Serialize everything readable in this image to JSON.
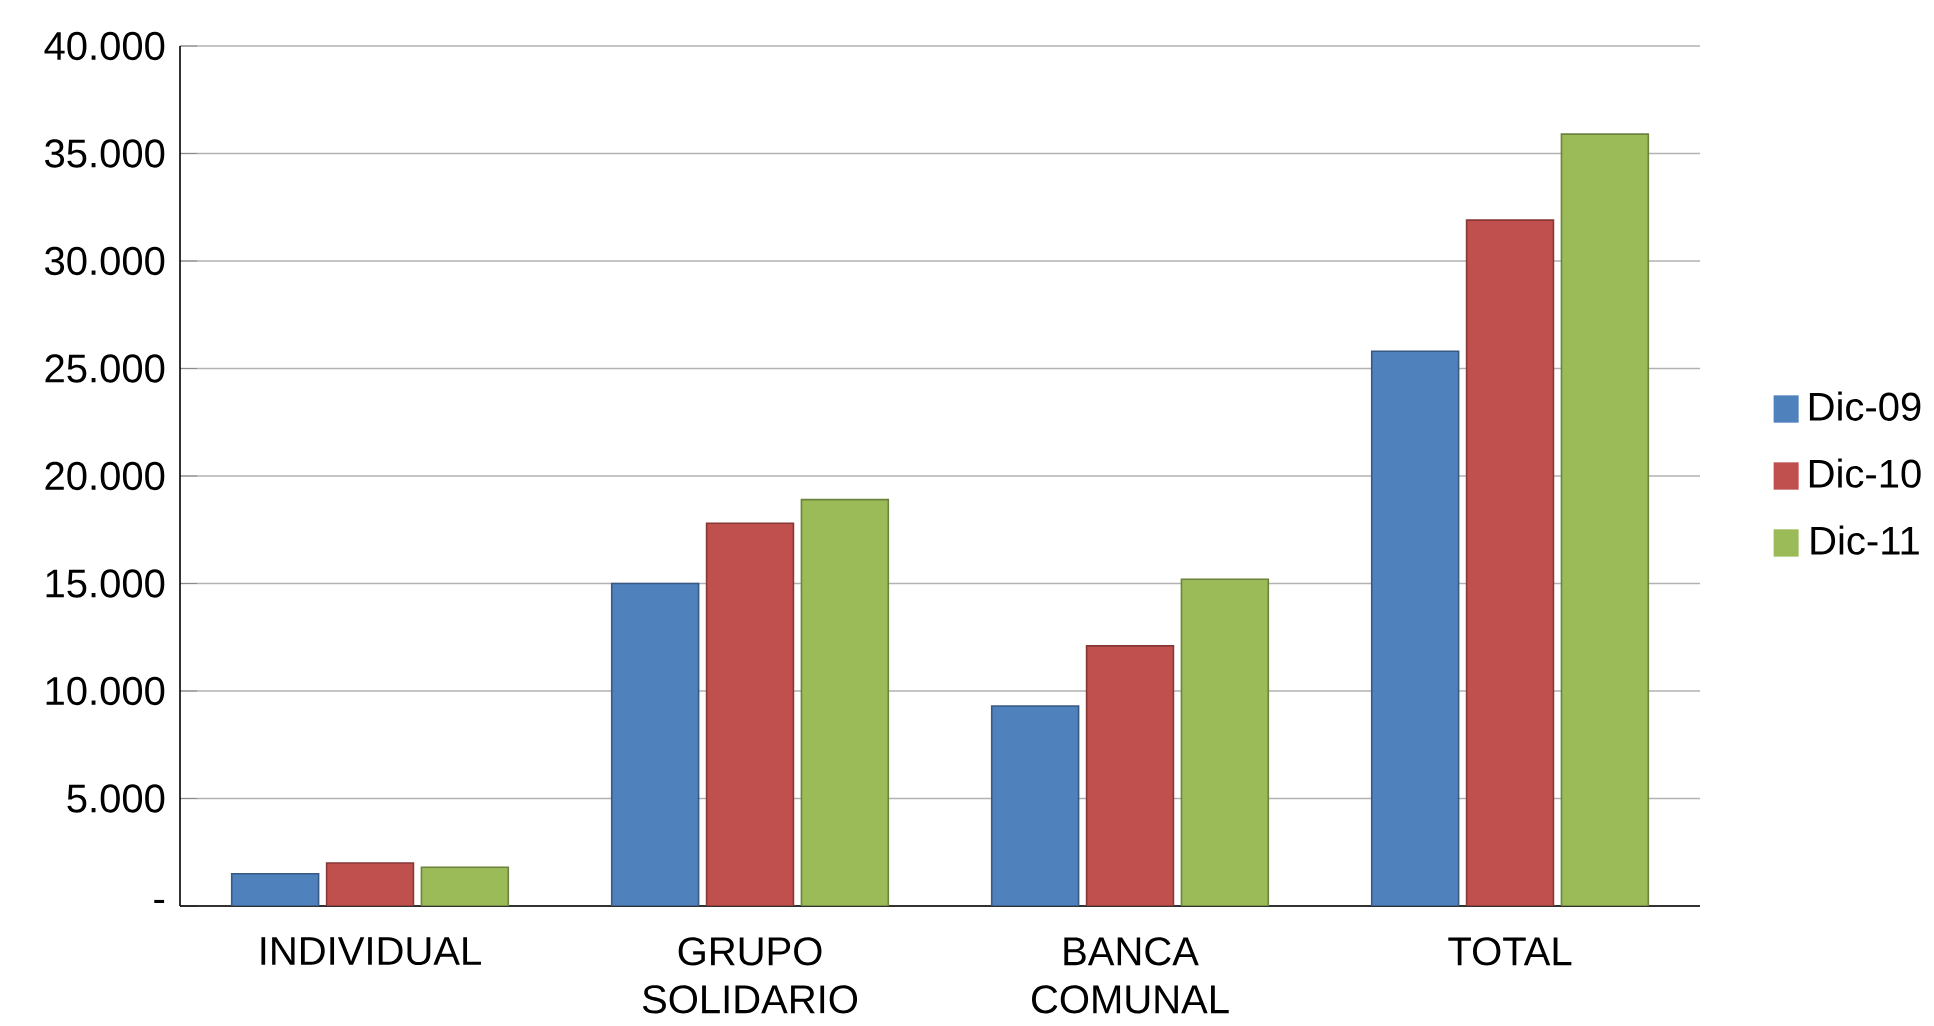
{
  "chart_data": {
    "type": "bar",
    "categories": [
      "INDIVIDUAL",
      "GRUPO SOLIDARIO",
      "BANCA COMUNAL",
      "TOTAL"
    ],
    "series": [
      {
        "name": "Dic-09",
        "color": "#4f81bd",
        "values": [
          1500,
          15000,
          9300,
          25800
        ]
      },
      {
        "name": "Dic-10",
        "color": "#c0504d",
        "values": [
          2000,
          17800,
          12100,
          31900
        ]
      },
      {
        "name": "Dic-11",
        "color": "#9bbb59",
        "values": [
          1800,
          18900,
          15200,
          35900
        ]
      }
    ],
    "ylim": [
      0,
      40000
    ],
    "yticks": [
      {
        "value": 0,
        "label": "-"
      },
      {
        "value": 5000,
        "label": "5.000"
      },
      {
        "value": 10000,
        "label": "10.000"
      },
      {
        "value": 15000,
        "label": "15.000"
      },
      {
        "value": 20000,
        "label": "20.000"
      },
      {
        "value": 25000,
        "label": "25.000"
      },
      {
        "value": 30000,
        "label": "30.000"
      },
      {
        "value": 35000,
        "label": "35.000"
      },
      {
        "value": 40000,
        "label": "40.000"
      }
    ],
    "grid": "y",
    "legend": "right"
  }
}
